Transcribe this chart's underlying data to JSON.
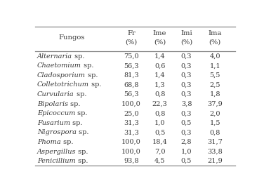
{
  "col_headers_line1": [
    "Fungos",
    "Fr",
    "Ime",
    "Imi",
    "Ima"
  ],
  "col_headers_line2": [
    "",
    "(%)",
    "(%)",
    "(%)",
    "(%)"
  ],
  "rows": [
    [
      "Alternaria",
      " sp.",
      "75,0",
      "1,4",
      "0,3",
      "4,0"
    ],
    [
      "Chaetomium",
      " sp.",
      "56,3",
      "0,6",
      "0,3",
      "1,1"
    ],
    [
      "Cladosporium",
      " sp.",
      "81,3",
      "1,4",
      "0,3",
      "5,5"
    ],
    [
      "Colletotrichum",
      " sp.",
      "68,8",
      "1,3",
      "0,3",
      "2,5"
    ],
    [
      "Curvularia",
      " sp.",
      "56,3",
      "0,8",
      "0,3",
      "1,8"
    ],
    [
      "Bipolaris",
      " sp.",
      "100,0",
      "22,3",
      "3,8",
      "37,9"
    ],
    [
      "Epicoccum",
      " sp.",
      "25,0",
      "0,8",
      "0,3",
      "2,0"
    ],
    [
      "Fusarium",
      " sp.",
      "31,3",
      "1,0",
      "0,5",
      "1,5"
    ],
    [
      "Nigrospora",
      " sp.",
      "31,3",
      "0,5",
      "0,3",
      "0,8"
    ],
    [
      "Phoma",
      " sp.",
      "100,0",
      "18,4",
      "2,8",
      "31,7"
    ],
    [
      "Aspergillus",
      " sp.",
      "100,0",
      "7,0",
      "1,0",
      "33,8"
    ],
    [
      "Penicillium",
      " sp.",
      "93,8",
      "4,5",
      "0,5",
      "21,9"
    ]
  ],
  "bg_color": "#ffffff",
  "text_color": "#3a3a3a",
  "line_color": "#888888",
  "figsize": [
    3.76,
    2.68
  ],
  "dpi": 100,
  "fontsize": 7.0,
  "header_fontsize": 7.2
}
